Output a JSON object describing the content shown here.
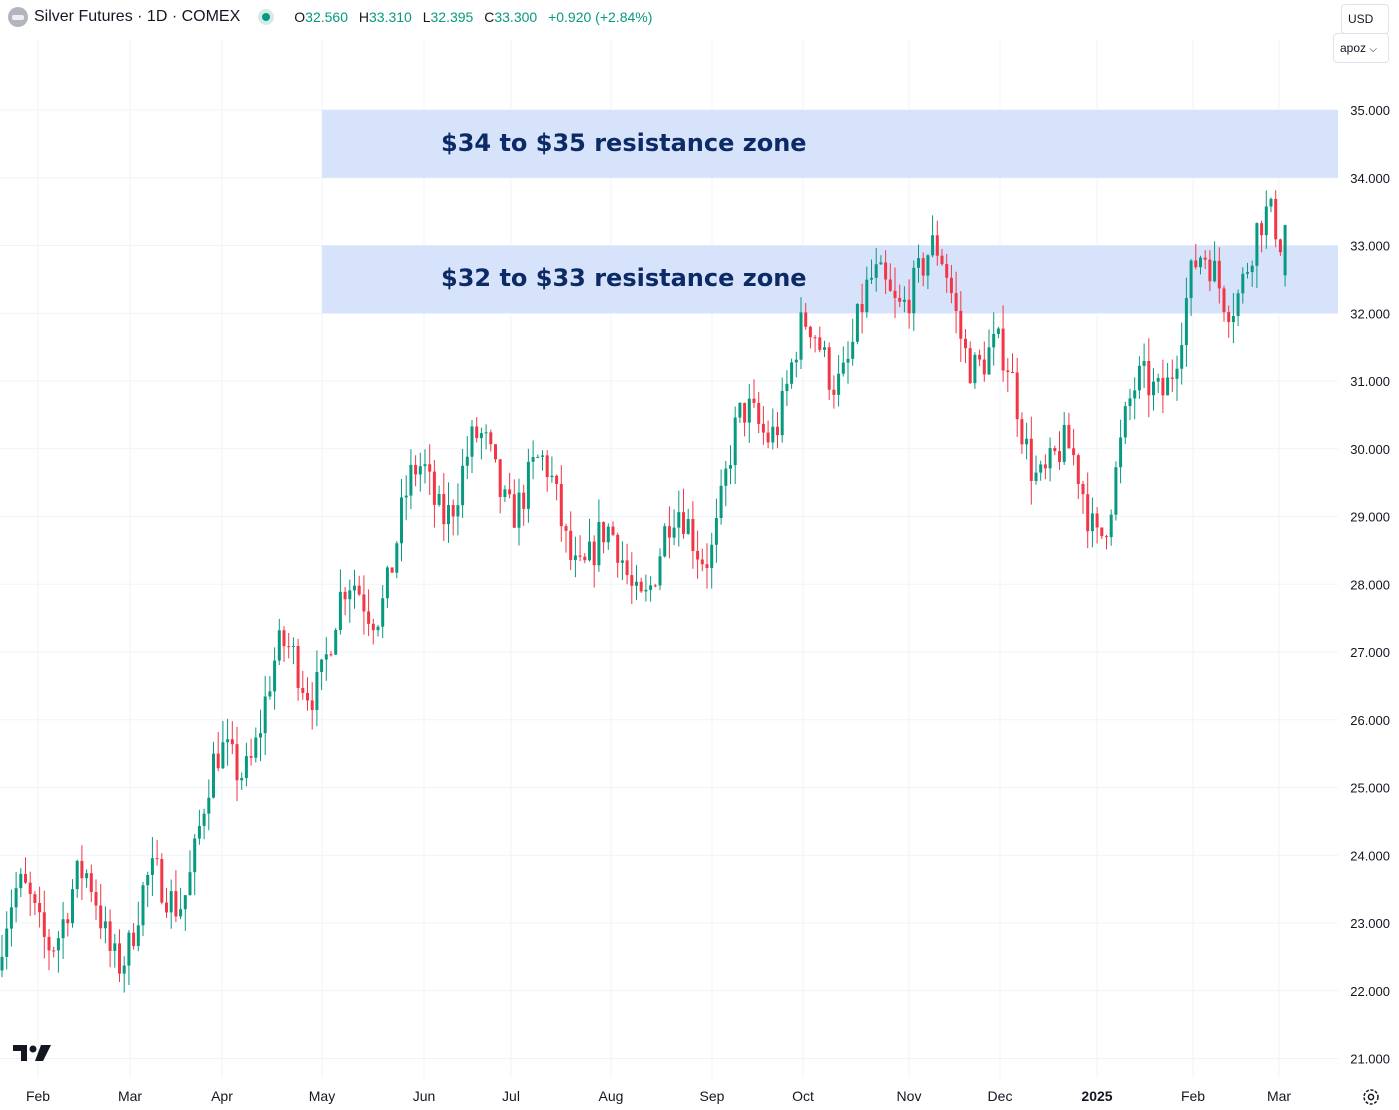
{
  "header": {
    "title": "Silver Futures · 1D · COMEX",
    "ohlc": [
      {
        "key": "O",
        "value": "32.560"
      },
      {
        "key": "H",
        "value": "33.310"
      },
      {
        "key": "L",
        "value": "32.395"
      },
      {
        "key": "C",
        "value": "33.300"
      }
    ],
    "change": "+0.920 (+2.84%)"
  },
  "controls": {
    "currency": "USD",
    "unit": "apoz"
  },
  "icons": [
    "symbol-icon",
    "live-status-icon",
    "chevron-down-icon",
    "tradingview-logo",
    "settings-icon"
  ],
  "colors": {
    "up": "#089981",
    "down": "#f23645",
    "zone": "#d6e3fb",
    "zone_text": "#0c2a66"
  },
  "chart_data": {
    "type": "candlestick",
    "title": "Silver Futures · 1D · COMEX",
    "x_labels": [
      "Feb",
      "Mar",
      "Apr",
      "May",
      "Jun",
      "Jul",
      "Aug",
      "Sep",
      "Oct",
      "Nov",
      "Dec",
      "2025",
      "Feb",
      "Mar"
    ],
    "y_ticks": [
      "21.000",
      "22.000",
      "23.000",
      "24.000",
      "25.000",
      "26.000",
      "27.000",
      "28.000",
      "29.000",
      "30.000",
      "31.000",
      "32.000",
      "33.000",
      "34.000",
      "35.000"
    ],
    "ylim": [
      20.6,
      36.0
    ],
    "currency": "USD",
    "grid": true,
    "zones": [
      {
        "label": "$34 to $35 resistance zone",
        "low": 34,
        "high": 35
      },
      {
        "label": "$32 to $33 resistance zone",
        "low": 32,
        "high": 33
      }
    ],
    "anchors": [
      {
        "month": "2024-02",
        "close": 22.8
      },
      {
        "month": "2024-03",
        "close": 23.0
      },
      {
        "month": "2024-04",
        "close": 25.2
      },
      {
        "month": "2024-05",
        "close": 26.8
      },
      {
        "month": "2024-06",
        "close": 29.8
      },
      {
        "month": "2024-07",
        "close": 29.2
      },
      {
        "month": "2024-08",
        "close": 28.6
      },
      {
        "month": "2024-09",
        "close": 28.7
      },
      {
        "month": "2024-10",
        "close": 31.4
      },
      {
        "month": "2024-11",
        "close": 32.8
      },
      {
        "month": "2024-12",
        "close": 30.7
      },
      {
        "month": "2025-01",
        "close": 29.5
      },
      {
        "month": "2025-02",
        "close": 31.8
      },
      {
        "month": "2025-03",
        "close": 33.3
      }
    ],
    "last": {
      "open": 32.56,
      "high": 33.31,
      "low": 32.395,
      "close": 33.3
    }
  }
}
